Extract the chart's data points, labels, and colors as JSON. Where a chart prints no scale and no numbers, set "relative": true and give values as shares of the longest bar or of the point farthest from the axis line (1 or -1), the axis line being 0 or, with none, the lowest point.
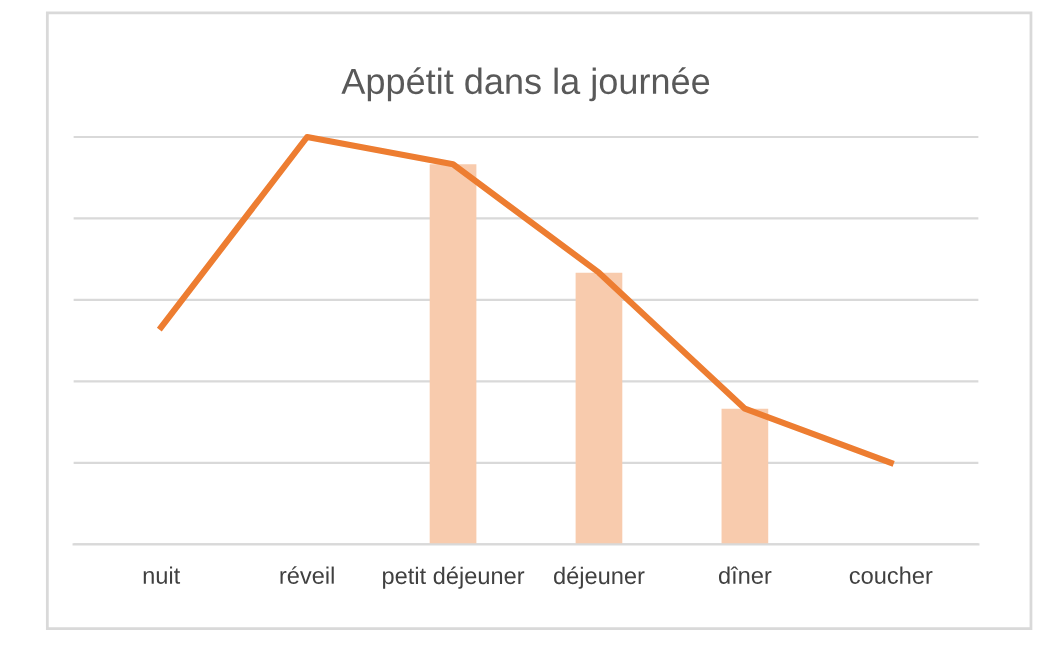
{
  "chart_data": {
    "type": "line",
    "title": "Appétit dans la journée",
    "relative": true,
    "categories": [
      "nuit",
      "réveil",
      "petit déjeuner",
      "déjeuner",
      "dîner",
      "coucher"
    ],
    "series": [
      {
        "type": "bar",
        "color": "#f8cbad",
        "values": [
          null,
          null,
          0.933,
          0.667,
          0.333,
          null
        ]
      },
      {
        "color": "#ed7d31",
        "values": [
          0.533,
          1,
          0.933,
          0.667,
          0.333,
          0.2
        ]
      }
    ],
    "grid": "y",
    "legend": false,
    "marker": "none",
    "line_style": "solid"
  }
}
